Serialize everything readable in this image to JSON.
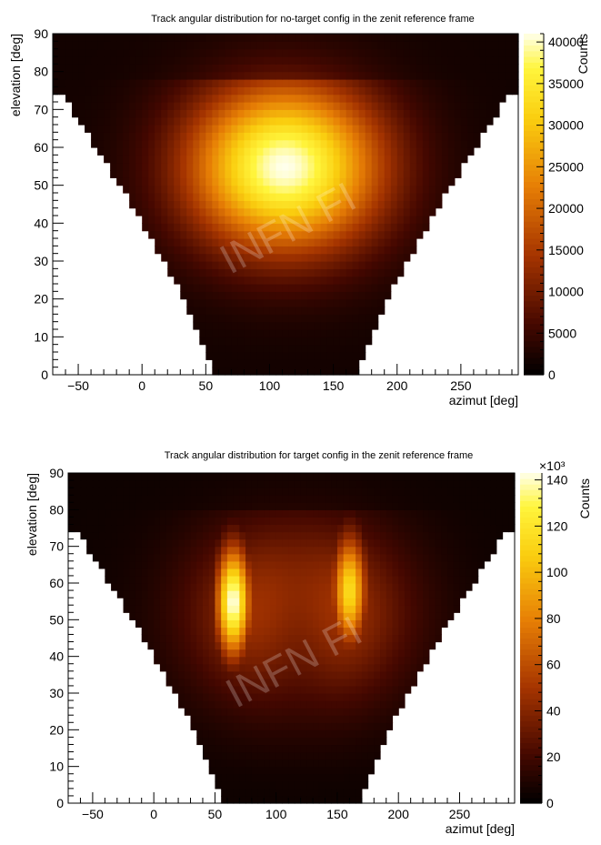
{
  "chart_data": [
    {
      "type": "heatmap",
      "title": "Track angular distribution for no-target config in the zenit reference frame",
      "xlabel": "azimut [deg]",
      "ylabel": "elevation [deg]",
      "zlabel": "Counts",
      "xlim": [
        -70,
        295
      ],
      "ylim": [
        0,
        90
      ],
      "xticks": [
        -50,
        0,
        50,
        100,
        150,
        200,
        250
      ],
      "yticks": [
        0,
        10,
        20,
        30,
        40,
        50,
        60,
        70,
        80,
        90
      ],
      "zlim": [
        0,
        41000
      ],
      "zticks": [
        0,
        5000,
        10000,
        15000,
        20000,
        25000,
        30000,
        35000,
        40000
      ],
      "z_exponent": "",
      "colormap": "dark-body",
      "watermark": "INFN FI",
      "shape": "single-peak",
      "peak": {
        "azimuth": 112,
        "elevation": 55,
        "counts": 41000
      },
      "acceptance": {
        "bottom_azimuth_range": [
          55,
          170
        ],
        "full_above_elevation": 75,
        "edge_azimuths_at_75": [
          -65,
          290
        ]
      }
    },
    {
      "type": "heatmap",
      "title": "Track angular distribution for target config in the zenit reference frame",
      "xlabel": "azimut [deg]",
      "ylabel": "elevation [deg]",
      "zlabel": "Counts",
      "xlim": [
        -70,
        295
      ],
      "ylim": [
        0,
        90
      ],
      "xticks": [
        -50,
        0,
        50,
        100,
        150,
        200,
        250
      ],
      "yticks": [
        0,
        10,
        20,
        30,
        40,
        50,
        60,
        70,
        80,
        90
      ],
      "zlim": [
        0,
        143
      ],
      "zticks": [
        0,
        20,
        40,
        60,
        80,
        100,
        120,
        140
      ],
      "z_exponent": "×10³",
      "colormap": "dark-body",
      "watermark": "INFN FI",
      "shape": "twin-lobes",
      "peaks": [
        {
          "azimuth": 65,
          "elevation": 55,
          "counts": 143
        },
        {
          "azimuth": 160,
          "elevation": 58,
          "counts": 110
        }
      ],
      "shadow_center": {
        "azimuth": 118,
        "elevation": 45
      },
      "acceptance": {
        "bottom_azimuth_range": [
          55,
          170
        ],
        "full_above_elevation": 75,
        "edge_azimuths_at_75": [
          -65,
          290
        ]
      }
    }
  ]
}
